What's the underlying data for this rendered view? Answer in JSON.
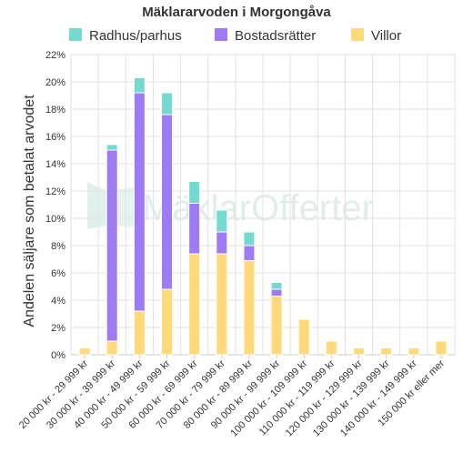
{
  "chart_data": {
    "type": "bar",
    "stacked": true,
    "title": "Mäklararvoden i Morgongåva",
    "ylabel": "Andelen säljare som betalat arvodet",
    "xlabel": "",
    "ylim": [
      0,
      22
    ],
    "y_ticks": [
      "0%",
      "2%",
      "4%",
      "6%",
      "8%",
      "10%",
      "12%",
      "14%",
      "16%",
      "18%",
      "20%",
      "22%"
    ],
    "grid": true,
    "legend_position": "top",
    "categories": [
      "20 000 kr - 29 999 kr",
      "30 000 kr - 39 999 kr",
      "40 000 kr - 49 999 kr",
      "50 000 kr - 59 999 kr",
      "60 000 kr - 69 999 kr",
      "70 000 kr - 79 999 kr",
      "80 000 kr - 89 999 kr",
      "90 000 kr - 99 999 kr",
      "100 000 kr - 109 999 kr",
      "110 000 kr - 119 999 kr",
      "120 000 kr - 129 999 kr",
      "130 000 kr - 139 999 kr",
      "140 000 kr - 149 999 kr",
      "150 000 kr eller mer"
    ],
    "series": [
      {
        "name": "Villor",
        "color": "#ffd97a",
        "values": [
          0.5,
          1.0,
          3.2,
          4.8,
          7.4,
          7.4,
          6.9,
          4.3,
          2.6,
          1.0,
          0.5,
          0.5,
          0.5,
          1.0
        ]
      },
      {
        "name": "Bostadsrätter",
        "color": "#9e7bf3",
        "values": [
          0,
          14.0,
          16.0,
          12.8,
          3.7,
          1.6,
          1.1,
          0.5,
          0,
          0,
          0,
          0,
          0,
          0
        ]
      },
      {
        "name": "Radhus/parhus",
        "color": "#76d9cf",
        "values": [
          0,
          0.4,
          1.1,
          1.6,
          1.6,
          1.6,
          1.0,
          0.5,
          0,
          0,
          0,
          0,
          0,
          0
        ]
      }
    ],
    "legend_order": [
      "Radhus/parhus",
      "Bostadsrätter",
      "Villor"
    ],
    "watermark": "MäklarOfferter"
  }
}
